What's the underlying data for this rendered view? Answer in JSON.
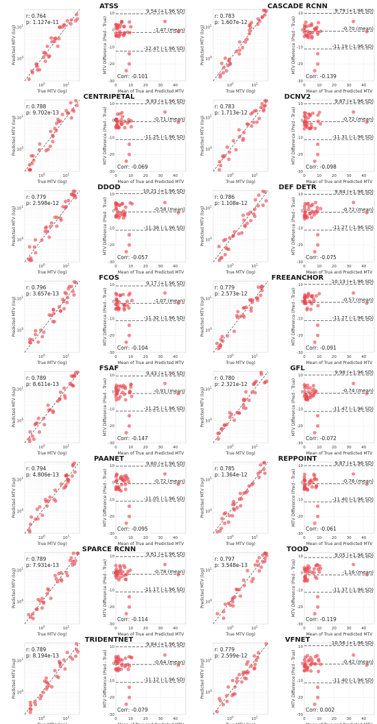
{
  "figure": {
    "labels": {
      "scatter_xlabel": "True MTV (log)",
      "scatter_ylabel": "Predicted MTV (log)",
      "ba_xlabel": "Mean of True and Predicted MTV",
      "ba_ylabel": "MTV Difference (Pred - True)",
      "scatter_ticks": [
        "10",
        "10"
      ],
      "scatter_tick_exponents": [
        "0",
        "1"
      ],
      "ba_xticks": [
        "0",
        "10",
        "20",
        "30",
        "40"
      ],
      "ba_yticks": [
        "10",
        "0",
        "-10",
        "-20",
        "-30"
      ],
      "r_prefix": "r: ",
      "p_prefix": "p: ",
      "corr_prefix": "Corr: ",
      "upper_suffix": " (+1.96 SD)",
      "mean_suffix": " (mean)",
      "lower_suffix": " (-1.96 SD)"
    },
    "colors": {
      "points": "#e8474f",
      "lines": "#6a6a6a"
    }
  },
  "chart_data": [
    {
      "type": "scatter",
      "title": "ATSS",
      "r": "0.764",
      "p": "1.127e-11",
      "upper": "9.54",
      "mean": "-1.47",
      "lower": "-12.47",
      "corr": "-0.101",
      "xscale": "log",
      "yscale": "log",
      "ba_xlim": [
        0,
        47
      ],
      "ba_ylim": [
        -30,
        12
      ]
    },
    {
      "type": "scatter",
      "title": "CASCADE RCNN",
      "r": "0.783",
      "p": "1.607e-12",
      "upper": "9.79",
      "mean": "-0.70",
      "lower": "-11.19",
      "corr": "-0.139",
      "xscale": "log",
      "yscale": "log",
      "ba_xlim": [
        0,
        47
      ],
      "ba_ylim": [
        -30,
        12
      ]
    },
    {
      "type": "scatter",
      "title": "CENTRIPETAL",
      "r": "0.788",
      "p": "9.702e-13",
      "upper": "9.83",
      "mean": "-0.71",
      "lower": "-11.25",
      "corr": "-0.069",
      "xscale": "log",
      "yscale": "log",
      "ba_xlim": [
        0,
        47
      ],
      "ba_ylim": [
        -30,
        12
      ]
    },
    {
      "type": "scatter",
      "title": "DCNV2",
      "r": "0.783",
      "p": "1.713e-12",
      "upper": "9.87",
      "mean": "-0.72",
      "lower": "-11.31",
      "corr": "-0.098",
      "xscale": "log",
      "yscale": "log",
      "ba_xlim": [
        0,
        47
      ],
      "ba_ylim": [
        -30,
        12
      ]
    },
    {
      "type": "scatter",
      "title": "DDOD",
      "r": "0.779",
      "p": "2.598e-12",
      "upper": "10.21",
      "mean": "-0.58",
      "lower": "-11.38",
      "corr": "-0.057",
      "xscale": "log",
      "yscale": "log",
      "ba_xlim": [
        0,
        47
      ],
      "ba_ylim": [
        -30,
        12
      ]
    },
    {
      "type": "scatter",
      "title": "DEF DETR",
      "r": "0.786",
      "p": "1.108e-12",
      "upper": "9.84",
      "mean": "-0.72",
      "lower": "-11.27",
      "corr": "-0.075",
      "xscale": "log",
      "yscale": "log",
      "ba_xlim": [
        0,
        47
      ],
      "ba_ylim": [
        -30,
        12
      ]
    },
    {
      "type": "scatter",
      "title": "FCOS",
      "r": "0.796",
      "p": "3.657e-13",
      "upper": "9.17",
      "mean": "-1.07",
      "lower": "-11.32",
      "corr": "-0.104",
      "xscale": "log",
      "yscale": "log",
      "ba_xlim": [
        0,
        47
      ],
      "ba_ylim": [
        -30,
        12
      ]
    },
    {
      "type": "scatter",
      "title": "FREEANCHOR",
      "r": "0.779",
      "p": "2.573e-12",
      "upper": "10.13",
      "mean": "-0.57",
      "lower": "-11.27",
      "corr": "-0.091",
      "xscale": "log",
      "yscale": "log",
      "ba_xlim": [
        0,
        47
      ],
      "ba_ylim": [
        -30,
        12
      ]
    },
    {
      "type": "scatter",
      "title": "FSAF",
      "r": "0.789",
      "p": "8.611e-13",
      "upper": "9.43",
      "mean": "-0.91",
      "lower": "-11.25",
      "corr": "-0.147",
      "xscale": "log",
      "yscale": "log",
      "ba_xlim": [
        0,
        47
      ],
      "ba_ylim": [
        -30,
        12
      ]
    },
    {
      "type": "scatter",
      "title": "GFL",
      "r": "0.780",
      "p": "2.321e-12",
      "upper": "9.98",
      "mean": "-0.74",
      "lower": "-11.47",
      "corr": "-0.072",
      "xscale": "log",
      "yscale": "log",
      "ba_xlim": [
        0,
        47
      ],
      "ba_ylim": [
        -30,
        12
      ]
    },
    {
      "type": "scatter",
      "title": "PAANET",
      "r": "0.794",
      "p": "4.806e-13",
      "upper": "9.60",
      "mean": "-0.72",
      "lower": "-11.05",
      "corr": "-0.095",
      "xscale": "log",
      "yscale": "log",
      "ba_xlim": [
        0,
        47
      ],
      "ba_ylim": [
        -30,
        12
      ]
    },
    {
      "type": "scatter",
      "title": "REPPOINT",
      "r": "0.785",
      "p": "1.364e-12",
      "upper": "9.87",
      "mean": "-0.76",
      "lower": "-11.40",
      "corr": "-0.061",
      "xscale": "log",
      "yscale": "log",
      "ba_xlim": [
        0,
        47
      ],
      "ba_ylim": [
        -30,
        12
      ]
    },
    {
      "type": "scatter",
      "title": "SPARCE RCNN",
      "r": "0.789",
      "p": "7.931e-13",
      "upper": "9.61",
      "mean": "-0.78",
      "lower": "-11.17",
      "corr": "-0.114",
      "xscale": "log",
      "yscale": "log",
      "ba_xlim": [
        0,
        47
      ],
      "ba_ylim": [
        -30,
        12
      ]
    },
    {
      "type": "scatter",
      "title": "TOOD",
      "r": "0.797",
      "p": "3.548e-13",
      "upper": "9.05",
      "mean": "-1.16",
      "lower": "-11.37",
      "corr": "-0.119",
      "xscale": "log",
      "yscale": "log",
      "ba_xlim": [
        0,
        47
      ],
      "ba_ylim": [
        -30,
        12
      ]
    },
    {
      "type": "scatter",
      "title": "TRIDENTNET",
      "r": "0.789",
      "p": "8.194e-13",
      "upper": "9.84",
      "mean": "-0.64",
      "lower": "-11.12",
      "corr": "-0.079",
      "xscale": "log",
      "yscale": "log",
      "ba_xlim": [
        0,
        47
      ],
      "ba_ylim": [
        -30,
        12
      ]
    },
    {
      "type": "scatter",
      "title": "VFNET",
      "r": "0.779",
      "p": "2.599e-12",
      "upper": "10.56",
      "mean": "-0.42",
      "lower": "-11.40",
      "corr": "0.002",
      "xscale": "log",
      "yscale": "log",
      "ba_xlim": [
        0,
        47
      ],
      "ba_ylim": [
        -30,
        12
      ]
    }
  ]
}
